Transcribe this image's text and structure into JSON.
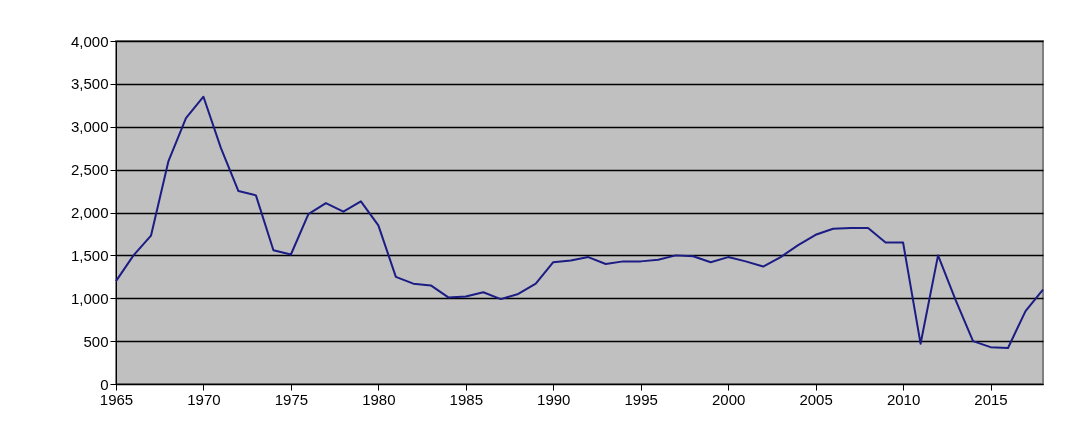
{
  "chart_data": {
    "type": "line",
    "x": [
      1965,
      1966,
      1967,
      1968,
      1969,
      1970,
      1971,
      1972,
      1973,
      1974,
      1975,
      1976,
      1977,
      1978,
      1979,
      1980,
      1981,
      1982,
      1983,
      1984,
      1985,
      1986,
      1987,
      1988,
      1989,
      1990,
      1991,
      1992,
      1993,
      1994,
      1995,
      1996,
      1997,
      1998,
      1999,
      2000,
      2001,
      2002,
      2003,
      2004,
      2005,
      2006,
      2007,
      2008,
      2009,
      2010,
      2011,
      2012,
      2013,
      2014,
      2015,
      2016,
      2017,
      2018
    ],
    "series": [
      {
        "color": "#1c1c85",
        "values": [
          1200,
          1500,
          1730,
          2600,
          3100,
          3350,
          2750,
          2250,
          2200,
          1560,
          1510,
          1980,
          2110,
          2010,
          2130,
          1850,
          1250,
          1170,
          1150,
          1010,
          1020,
          1070,
          990,
          1050,
          1170,
          1420,
          1440,
          1480,
          1400,
          1430,
          1430,
          1450,
          1500,
          1490,
          1420,
          1480,
          1430,
          1370,
          1480,
          1620,
          1740,
          1810,
          1820,
          1820,
          1650,
          1650,
          470,
          1500,
          980,
          500,
          430,
          420,
          850,
          1100
        ]
      }
    ],
    "xlim": [
      1965,
      2018
    ],
    "xticks": [
      1965,
      1970,
      1975,
      1980,
      1985,
      1990,
      1995,
      2000,
      2005,
      2010,
      2015
    ],
    "ylim": [
      0,
      4000
    ],
    "yticks": [
      {
        "value": 0,
        "label": "0"
      },
      {
        "value": 500,
        "label": "500"
      },
      {
        "value": 1000,
        "label": "1,000"
      },
      {
        "value": 1500,
        "label": "1,500"
      },
      {
        "value": 2000,
        "label": "2,000"
      },
      {
        "value": 2500,
        "label": "2,500"
      },
      {
        "value": 3000,
        "label": "3,000"
      },
      {
        "value": 3500,
        "label": "3,500"
      },
      {
        "value": 4000,
        "label": "4,000"
      }
    ],
    "grid": "y",
    "line_style": "solid",
    "marker": "none"
  }
}
